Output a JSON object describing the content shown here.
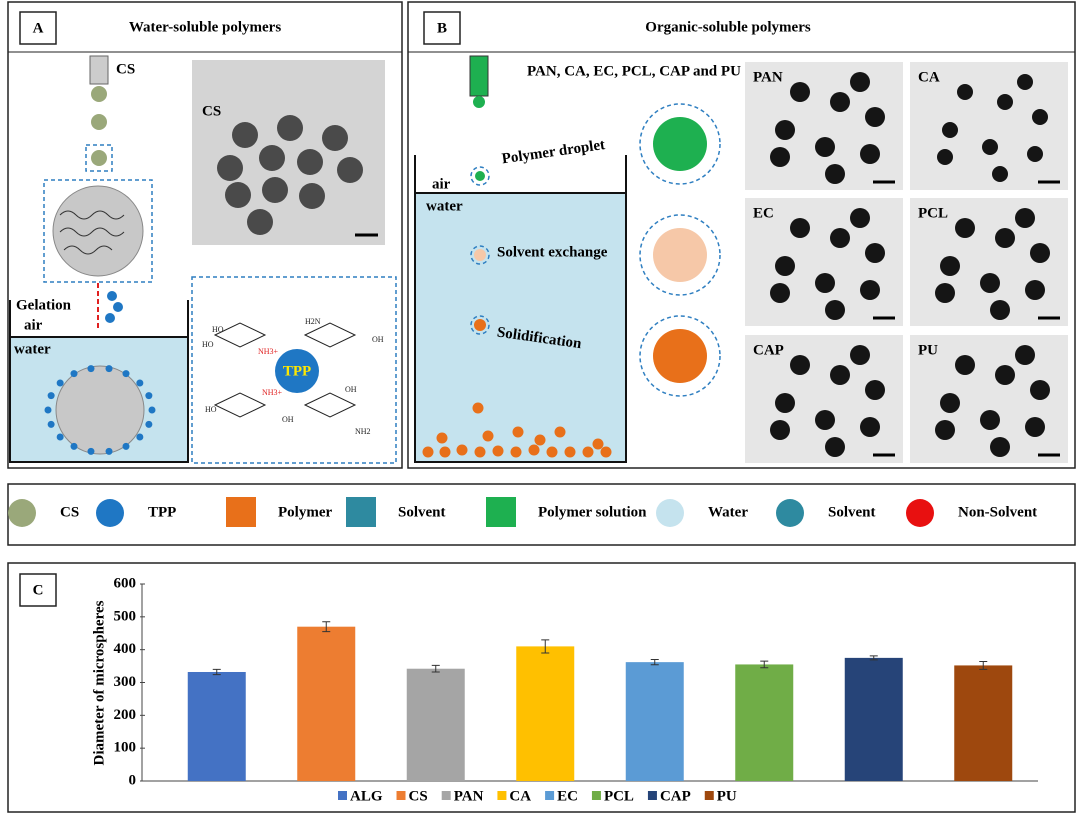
{
  "panel_a": {
    "label": "A",
    "title": "Water-soluble polymers",
    "needle_label": "CS",
    "image_label": "CS",
    "gelation": "Gelation",
    "air": "air",
    "water": "water",
    "tpp": "TPP",
    "structure_labels": [
      "HO",
      "HO",
      "NH3+",
      "H2N",
      "OH",
      "NH3+",
      "HO",
      "OH",
      "OH",
      "NH2"
    ]
  },
  "panel_b": {
    "label": "B",
    "title": "Organic-soluble polymers",
    "needle_label": "PAN, CA, EC, PCL, CAP and PU",
    "air": "air",
    "water": "water",
    "steps": [
      "Polymer droplet",
      "Solvent exchange",
      "Solidification"
    ],
    "images": [
      "PAN",
      "CA",
      "EC",
      "PCL",
      "CAP",
      "PU"
    ]
  },
  "legend": [
    "CS",
    "TPP",
    "Polymer",
    "Solvent",
    "Polymer  solution",
    "Water",
    "Solvent",
    "Non-Solvent"
  ],
  "chart_data": {
    "type": "bar",
    "panel_label": "C",
    "y_label": "Diameter of microspheres",
    "categories": [
      "ALG",
      "CS",
      "PAN",
      "CA",
      "EC",
      "PCL",
      "CAP",
      "PU"
    ],
    "values": [
      332,
      470,
      342,
      410,
      362,
      355,
      375,
      352
    ],
    "errors": [
      8,
      15,
      10,
      20,
      8,
      10,
      6,
      12
    ],
    "colors": [
      "#4472c4",
      "#ed7d31",
      "#a5a5a5",
      "#ffc000",
      "#5b9bd5",
      "#70ad47",
      "#264478",
      "#9e480e"
    ],
    "ylim": [
      0,
      600
    ],
    "yticks": [
      0,
      100,
      200,
      300,
      400,
      500,
      600
    ],
    "legend": "bottom"
  }
}
